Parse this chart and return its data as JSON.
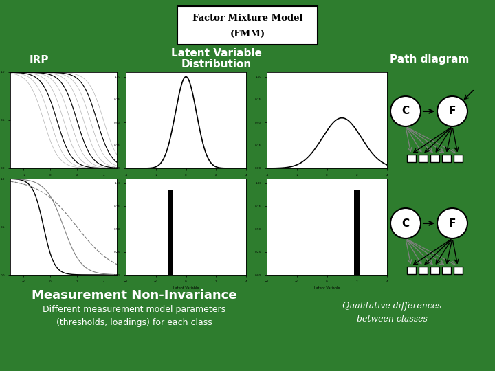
{
  "bg_color": "#2e7d2e",
  "title_box_text1": "Factor Mixture Model",
  "title_box_text2": "(FMM)",
  "label_irp": "IRP",
  "label_lvd1": "Latent Variable",
  "label_lvd2": "Distribution",
  "label_path": "Path diagram",
  "label_mni": "Measurement Non-Invariance",
  "label_diff_params": "Different measurement model parameters\n(thresholds, loadings) for each class",
  "label_qual": "Qualitative differences\nbetween classes",
  "white": "#ffffff",
  "black": "#000000",
  "gray": "#888888",
  "light_gray": "#aaaaaa"
}
